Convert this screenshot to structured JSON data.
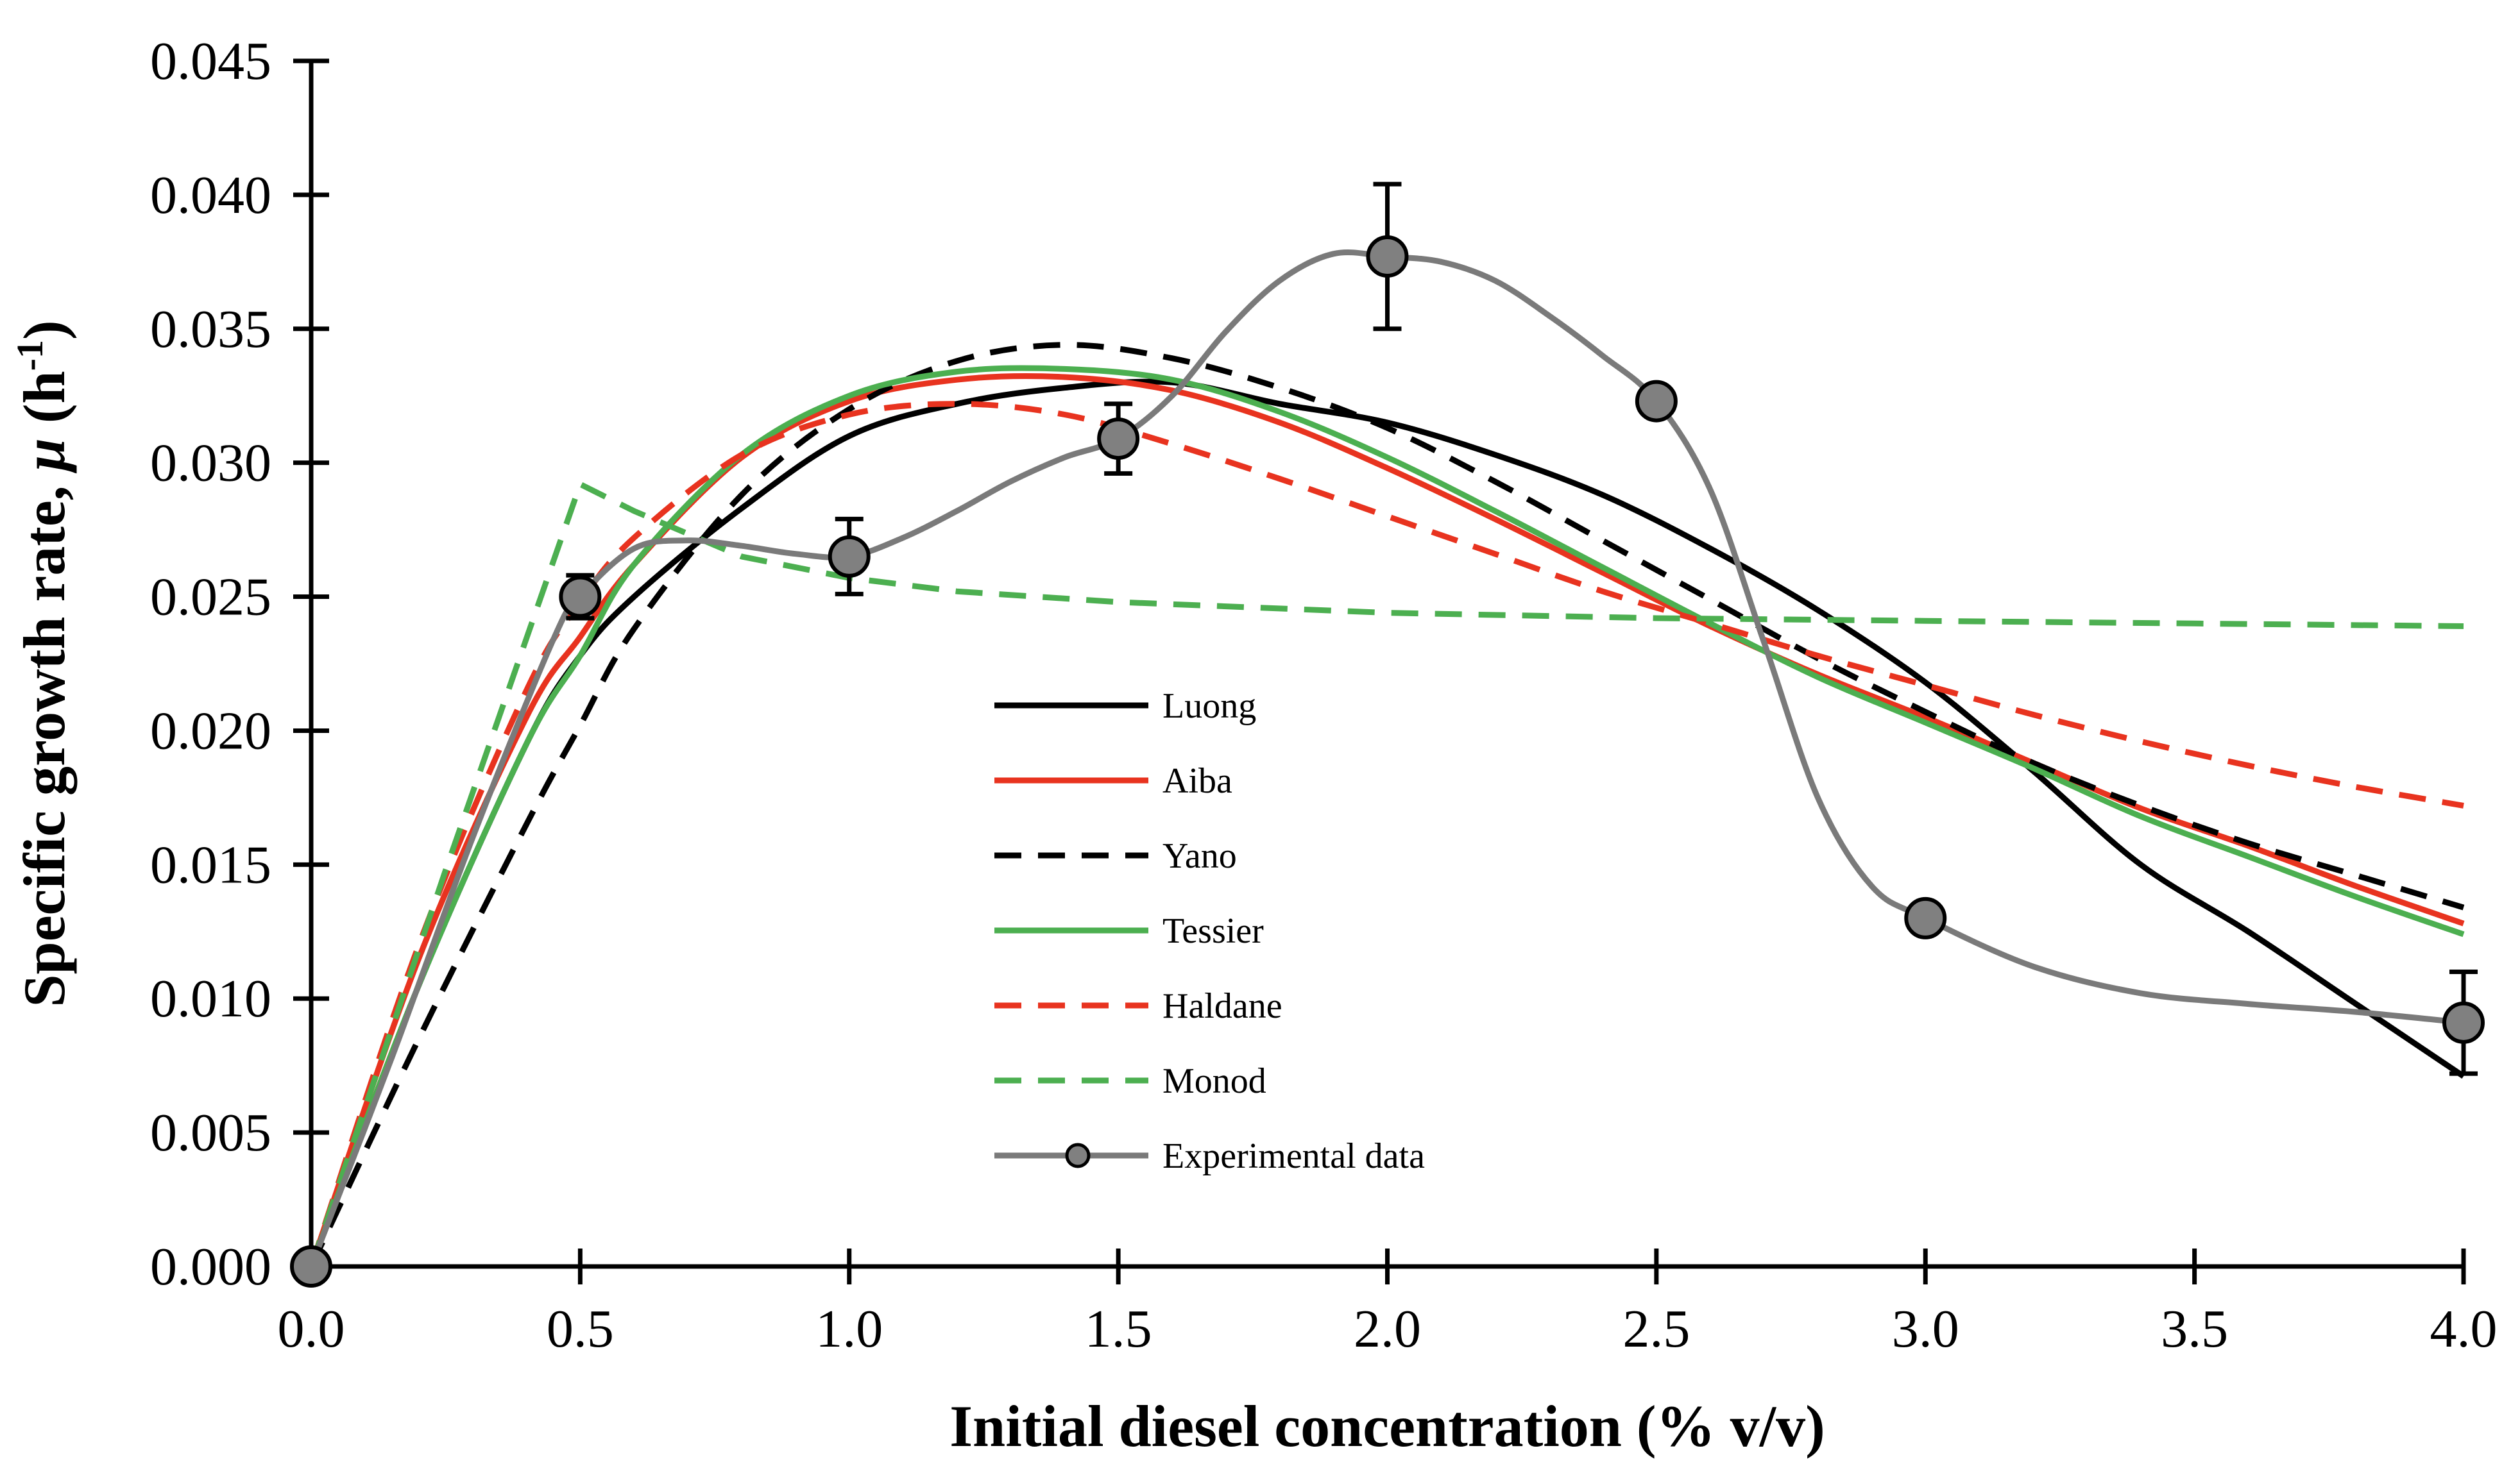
{
  "chart_data": {
    "type": "line",
    "xlabel": "Initial diesel concentration (% v/v)",
    "ylabel_parts": [
      "Specific growth rate, ",
      "μ",
      " (h",
      "-1",
      ")"
    ],
    "xlim": [
      0,
      4
    ],
    "ylim": [
      0,
      0.045
    ],
    "x_ticks": [
      0,
      0.5,
      1,
      1.5,
      2,
      2.5,
      3,
      3.5,
      4
    ],
    "x_tick_labels": [
      "0.0",
      "0.5",
      "1.0",
      "1.5",
      "2.0",
      "2.5",
      "3.0",
      "3.5",
      "4.0"
    ],
    "y_ticks": [
      0,
      0.005,
      0.01,
      0.015,
      0.02,
      0.025,
      0.03,
      0.035,
      0.04,
      0.045
    ],
    "y_tick_labels": [
      "0.000",
      "0.005",
      "0.010",
      "0.015",
      "0.020",
      "0.025",
      "0.030",
      "0.035",
      "0.040",
      "0.045"
    ],
    "grid": false,
    "legend_position": "center",
    "series": [
      {
        "name": "Luong",
        "color": "#000000",
        "dash": "solid",
        "x": [
          0,
          0.2,
          0.4,
          0.5,
          0.6,
          0.8,
          1.0,
          1.2,
          1.4,
          1.6,
          1.8,
          2.0,
          2.2,
          2.4,
          2.6,
          2.8,
          3.0,
          3.2,
          3.4,
          3.6,
          3.8,
          4.0
        ],
        "y": [
          0,
          0.0105,
          0.0195,
          0.0228,
          0.025,
          0.0283,
          0.031,
          0.0322,
          0.0328,
          0.033,
          0.0322,
          0.0315,
          0.0303,
          0.0288,
          0.0268,
          0.0245,
          0.0218,
          0.0185,
          0.015,
          0.0125,
          0.0098,
          0.0071
        ]
      },
      {
        "name": "Aiba",
        "color": "#e8331f",
        "dash": "solid",
        "x": [
          0,
          0.2,
          0.4,
          0.5,
          0.6,
          0.8,
          1.0,
          1.2,
          1.4,
          1.6,
          1.8,
          2.0,
          2.2,
          2.4,
          2.6,
          2.8,
          3.0,
          3.2,
          3.4,
          3.6,
          3.8,
          4.0
        ],
        "y": [
          0,
          0.0115,
          0.0205,
          0.0235,
          0.0262,
          0.0302,
          0.0323,
          0.0331,
          0.0332,
          0.0327,
          0.0315,
          0.0298,
          0.0279,
          0.0259,
          0.0239,
          0.0221,
          0.0205,
          0.0188,
          0.0171,
          0.0157,
          0.0142,
          0.0128
        ]
      },
      {
        "name": "Yano",
        "color": "#000000",
        "dash": "dashed",
        "x": [
          0,
          0.2,
          0.4,
          0.5,
          0.6,
          0.8,
          1.0,
          1.2,
          1.4,
          1.6,
          1.8,
          2.0,
          2.2,
          2.4,
          2.6,
          2.8,
          3.0,
          3.2,
          3.4,
          3.6,
          3.8,
          4.0
        ],
        "y": [
          0,
          0.0085,
          0.0165,
          0.0202,
          0.0238,
          0.0288,
          0.032,
          0.0338,
          0.0344,
          0.0339,
          0.0328,
          0.0313,
          0.0293,
          0.0271,
          0.0249,
          0.0227,
          0.0207,
          0.0188,
          0.0172,
          0.0158,
          0.0146,
          0.0134
        ]
      },
      {
        "name": "Tessier",
        "color": "#4caf50",
        "dash": "solid",
        "x": [
          0,
          0.2,
          0.4,
          0.5,
          0.6,
          0.8,
          1.0,
          1.2,
          1.4,
          1.6,
          1.8,
          2.0,
          2.2,
          2.4,
          2.6,
          2.8,
          3.0,
          3.2,
          3.4,
          3.6,
          3.8,
          4.0
        ],
        "y": [
          0,
          0.0105,
          0.0195,
          0.0228,
          0.0262,
          0.0303,
          0.0325,
          0.0334,
          0.0335,
          0.0331,
          0.0319,
          0.0302,
          0.0282,
          0.0261,
          0.024,
          0.022,
          0.0203,
          0.0186,
          0.0168,
          0.0153,
          0.0138,
          0.0124
        ]
      },
      {
        "name": "Haldane",
        "color": "#e8331f",
        "dash": "dashed",
        "x": [
          0,
          0.2,
          0.4,
          0.5,
          0.6,
          0.8,
          1.0,
          1.2,
          1.4,
          1.6,
          1.8,
          2.0,
          2.2,
          2.4,
          2.6,
          2.8,
          3.0,
          3.2,
          3.4,
          3.6,
          3.8,
          4.0
        ],
        "y": [
          0,
          0.012,
          0.0215,
          0.0248,
          0.0272,
          0.0303,
          0.0318,
          0.0322,
          0.0318,
          0.0307,
          0.0294,
          0.028,
          0.0266,
          0.0252,
          0.024,
          0.0228,
          0.0217,
          0.0206,
          0.0196,
          0.0187,
          0.0179,
          0.0172
        ]
      },
      {
        "name": "Monod",
        "color": "#4caf50",
        "dash": "dashed",
        "x": [
          0,
          0.25,
          0.5,
          0.6,
          0.8,
          1.0,
          1.2,
          1.5,
          2.0,
          2.5,
          3.0,
          3.5,
          4.0
        ],
        "y": [
          0,
          0.0148,
          0.0292,
          0.0282,
          0.0265,
          0.0257,
          0.0252,
          0.0248,
          0.0244,
          0.0242,
          0.0241,
          0.024,
          0.0239
        ]
      },
      {
        "name": "Experimental data",
        "color": "#7a7a7a",
        "dash": "solid",
        "markers": true,
        "x": [
          0,
          0.5,
          1.0,
          1.5,
          2.0,
          2.5,
          3.0,
          4.0
        ],
        "y": [
          0,
          0.025,
          0.0265,
          0.0309,
          0.0377,
          0.0323,
          0.013,
          0.0091
        ],
        "error": [
          0,
          0.0008,
          0.0014,
          0.0013,
          0.0027,
          0,
          0,
          0.0019
        ],
        "curve_x": [
          0,
          0.15,
          0.3,
          0.45,
          0.5,
          0.6,
          0.7,
          0.8,
          0.9,
          1.0,
          1.1,
          1.2,
          1.3,
          1.4,
          1.5,
          1.6,
          1.7,
          1.8,
          1.9,
          2.0,
          2.1,
          2.2,
          2.3,
          2.4,
          2.5,
          2.6,
          2.7,
          2.8,
          2.9,
          3.0,
          3.2,
          3.4,
          3.6,
          3.8,
          4.0
        ],
        "curve_y": [
          0,
          0.0078,
          0.016,
          0.0234,
          0.025,
          0.0268,
          0.0271,
          0.0269,
          0.0266,
          0.0265,
          0.0272,
          0.0282,
          0.0293,
          0.0302,
          0.0309,
          0.0325,
          0.0349,
          0.0368,
          0.0378,
          0.0377,
          0.0375,
          0.0368,
          0.0355,
          0.034,
          0.0323,
          0.029,
          0.0233,
          0.0175,
          0.0142,
          0.013,
          0.0112,
          0.0102,
          0.0098,
          0.0095,
          0.0091
        ]
      }
    ]
  }
}
